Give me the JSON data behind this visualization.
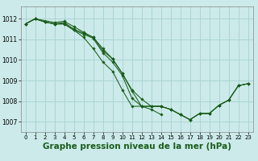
{
  "bg_color": "#cceaea",
  "grid_color": "#aad4d4",
  "line_color": "#1a5c1a",
  "title": "Graphe pression niveau de la mer (hPa)",
  "title_fontsize": 7.5,
  "xlim": [
    -0.5,
    23.5
  ],
  "ylim": [
    1006.5,
    1012.6
  ],
  "xticks": [
    0,
    1,
    2,
    3,
    4,
    5,
    6,
    7,
    8,
    9,
    10,
    11,
    12,
    13,
    14,
    15,
    16,
    17,
    18,
    19,
    20,
    21,
    22,
    23
  ],
  "yticks": [
    1007,
    1008,
    1009,
    1010,
    1011,
    1012
  ],
  "series": [
    [
      1011.75,
      1012.0,
      1011.85,
      1011.75,
      1011.82,
      1011.5,
      1011.3,
      1011.1,
      1010.45,
      1010.05,
      1009.35,
      1008.5,
      1007.75,
      1007.75,
      1007.75,
      1007.6,
      1007.35,
      1007.1,
      1007.4,
      1007.4,
      1007.8,
      1008.05,
      1008.75,
      1008.85
    ],
    [
      1011.75,
      1012.0,
      1011.85,
      1011.75,
      1011.75,
      1011.45,
      1011.1,
      1010.55,
      1009.9,
      1009.45,
      1008.55,
      1007.75,
      1007.75,
      1007.6,
      1007.35,
      null,
      null,
      null,
      null,
      null,
      null,
      null,
      null,
      null
    ],
    [
      1011.75,
      1012.0,
      null,
      1011.82,
      1011.88,
      1011.62,
      1011.35,
      1011.1,
      1010.55,
      1010.05,
      1009.35,
      1008.55,
      1008.1,
      1007.75,
      1007.75,
      1007.6,
      1007.35,
      1007.1,
      1007.4,
      1007.4,
      1007.8,
      1008.05,
      1008.75,
      1008.85
    ],
    [
      1011.75,
      1012.0,
      1011.85,
      1011.75,
      1011.75,
      1011.45,
      1011.25,
      1011.05,
      1010.35,
      1009.9,
      1009.25,
      1008.15,
      1007.75,
      1007.75,
      1007.75,
      1007.6,
      1007.35,
      1007.1,
      1007.4,
      1007.4,
      1007.8,
      1008.05,
      1008.75,
      1008.85
    ]
  ]
}
